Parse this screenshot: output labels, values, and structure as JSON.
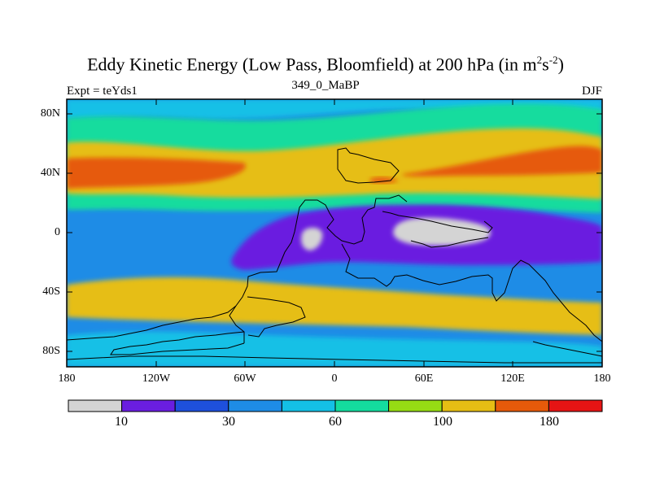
{
  "title": {
    "main": "Eddy Kinetic Energy (Low Pass, Bloomfield) at 200 hPa (in m",
    "sup1": "2",
    "mid": "s",
    "sup2": "-2",
    "end": ")"
  },
  "subtitle": "349_0_MaBP",
  "left_label": "Expt = teYds1",
  "right_label": "DJF",
  "chart_data": {
    "type": "heatmap",
    "x_ticks": [
      "180",
      "120W",
      "60W",
      "0",
      "60E",
      "120E",
      "180"
    ],
    "y_ticks": [
      "80N",
      "40N",
      "0",
      "40S",
      "80S"
    ],
    "colorbar": {
      "tick_labels": [
        "10",
        "30",
        "60",
        "100",
        "180"
      ],
      "colors": [
        "#d4d4d4",
        "#6a1ee0",
        "#1e50dc",
        "#1e8ce6",
        "#14c0e6",
        "#14dc9e",
        "#96dc14",
        "#e6be14",
        "#e65a0a",
        "#e61414"
      ]
    },
    "fields": [
      {
        "name": "background",
        "color": "#1e8ce6"
      },
      {
        "name": "arctic-cyan",
        "color": "#14c0e6"
      },
      {
        "name": "north-mid",
        "color": "#14dc9e"
      },
      {
        "name": "north-jet",
        "color": "#e6be14"
      },
      {
        "name": "north-jet-core",
        "color": "#e65a0a"
      },
      {
        "name": "equatorial-trough",
        "color": "#6a1ee0"
      },
      {
        "name": "equatorial-minimum",
        "color": "#d4d4d4"
      },
      {
        "name": "south-jet",
        "color": "#e6be14"
      },
      {
        "name": "antarctic-band",
        "color": "#14c0e6"
      }
    ]
  }
}
